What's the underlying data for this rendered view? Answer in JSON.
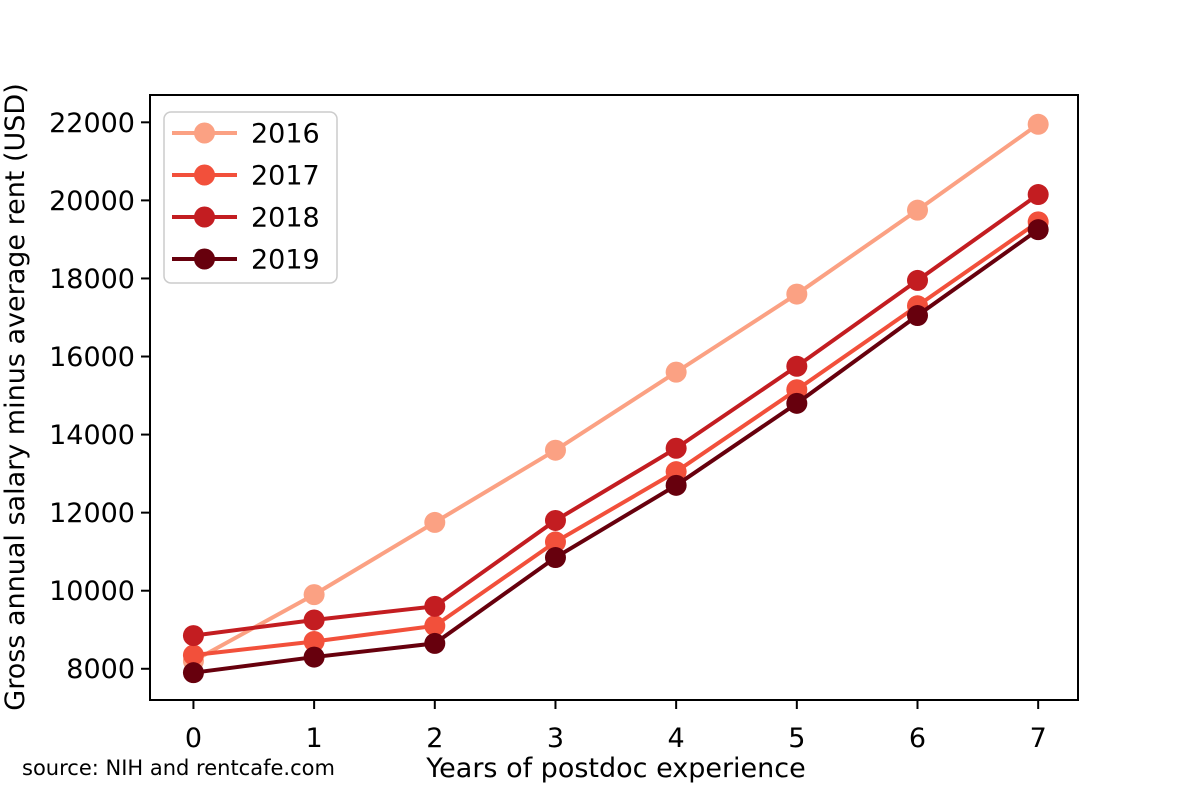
{
  "figure": {
    "source_note": "source: NIH and rentcafe.com"
  },
  "chart_data": {
    "type": "line",
    "title": "",
    "xlabel": "Years of postdoc experience",
    "ylabel": "Gross annual salary minus average rent (USD)",
    "x": [
      0,
      1,
      2,
      3,
      4,
      5,
      6,
      7
    ],
    "x_tick_labels": [
      "0",
      "1",
      "2",
      "3",
      "4",
      "5",
      "6",
      "7"
    ],
    "y_ticks": [
      8000,
      10000,
      12000,
      14000,
      16000,
      18000,
      20000,
      22000
    ],
    "y_tick_labels": [
      "8000",
      "10000",
      "12000",
      "14000",
      "16000",
      "18000",
      "20000",
      "22000"
    ],
    "xlim": [
      -0.36,
      7.33
    ],
    "ylim": [
      7200,
      22700
    ],
    "grid": false,
    "legend_position": "upper left",
    "series": [
      {
        "name": "2016",
        "color": "#fba183",
        "values": [
          8200,
          9900,
          11750,
          13600,
          15600,
          17600,
          19750,
          21950
        ]
      },
      {
        "name": "2017",
        "color": "#f2503b",
        "values": [
          8350,
          8700,
          9100,
          11250,
          13050,
          15150,
          17300,
          19450
        ]
      },
      {
        "name": "2018",
        "color": "#c31d21",
        "values": [
          8850,
          9250,
          9600,
          11800,
          13650,
          15750,
          17950,
          20150
        ]
      },
      {
        "name": "2019",
        "color": "#67000d",
        "values": [
          7900,
          8300,
          8650,
          10850,
          12700,
          14800,
          17050,
          19250
        ]
      }
    ]
  }
}
